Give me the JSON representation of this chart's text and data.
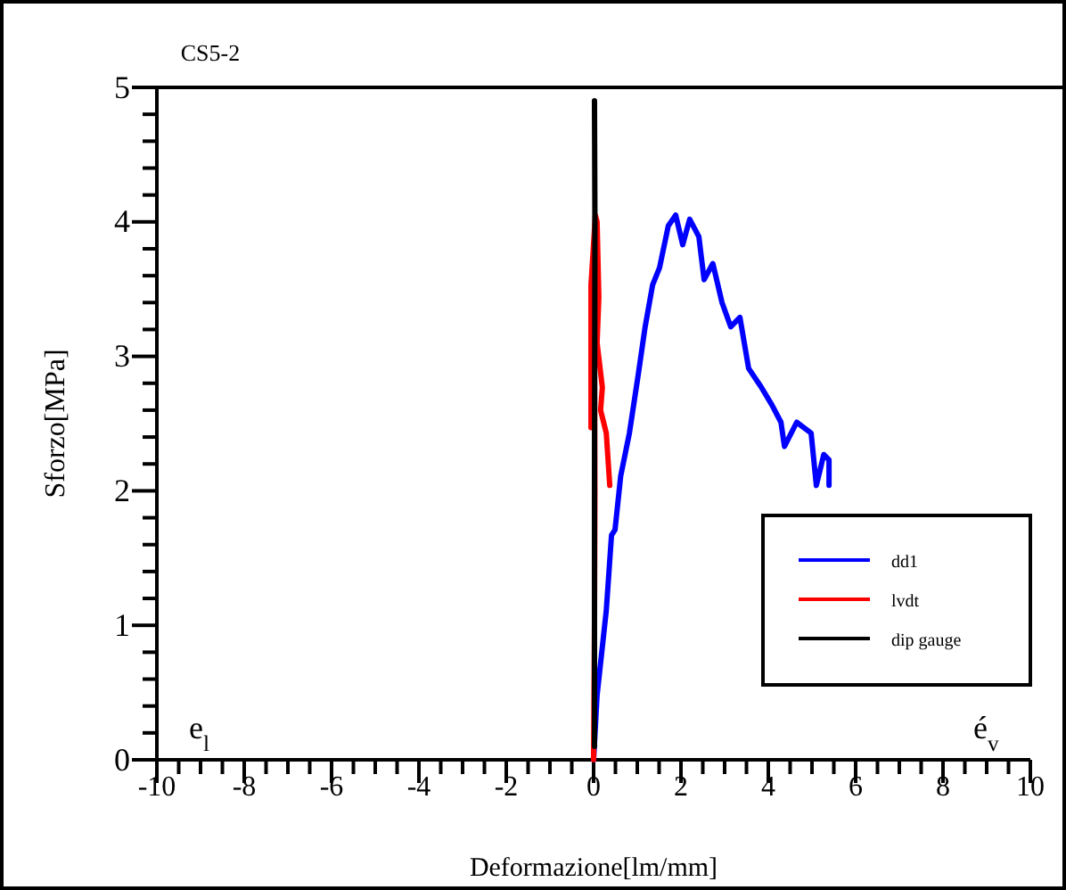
{
  "chart_data": {
    "type": "line",
    "title": "CS5-2",
    "xlabel": "Deformazione[lm/mm]",
    "ylabel": "Sforzo[MPa]",
    "annotations": [
      "e$_{l}$",
      "é$_{v}$"
    ],
    "series": [
      {
        "name": "dd1",
        "color": "#0000ff",
        "x": [
          0,
          0.08,
          0.29,
          0.41,
          0.49,
          0.62,
          0.82,
          1.02,
          1.18,
          1.35,
          1.51,
          1.71,
          1.88,
          2.04,
          2.2,
          2.41,
          2.53,
          2.73,
          2.94,
          3.14,
          3.35,
          3.55,
          3.84,
          4.08,
          4.29,
          4.37,
          4.65,
          4.98,
          5.1,
          5.27,
          5.39,
          5.39
        ],
        "values": [
          0,
          0.48,
          1.11,
          1.67,
          1.71,
          2.11,
          2.43,
          2.86,
          3.22,
          3.53,
          3.66,
          3.97,
          4.05,
          3.83,
          4.02,
          3.89,
          3.57,
          3.69,
          3.4,
          3.22,
          3.29,
          2.91,
          2.77,
          2.64,
          2.51,
          2.33,
          2.51,
          2.43,
          2.04,
          2.27,
          2.23,
          2.04
        ]
      },
      {
        "name": "lvdt",
        "color": "#ff0000",
        "x": [
          0,
          0.02,
          0.03,
          0.02,
          -0.06,
          -0.06,
          0.04,
          0.08,
          0.12,
          0.08,
          0.2,
          0.16,
          0.29,
          0.37
        ],
        "values": [
          0,
          1,
          2,
          3,
          2.47,
          3.53,
          4.05,
          4,
          3.44,
          3.1,
          2.77,
          2.6,
          2.43,
          2.04
        ]
      },
      {
        "name": "dip gauge",
        "color": "#000000",
        "x": [
          0.02,
          0.02,
          0.03,
          0.02
        ],
        "values": [
          0.1,
          2,
          4,
          4.9
        ]
      }
    ],
    "xlim": [
      -10,
      10
    ],
    "xticks": [
      -10,
      {
        "value": -9.5,
        "label": null
      },
      {
        "value": -9,
        "label": null
      },
      {
        "value": -8.5,
        "label": null
      },
      -8,
      {
        "value": -7.5,
        "label": null
      },
      {
        "value": -7,
        "label": null
      },
      {
        "value": -6.5,
        "label": null
      },
      -6,
      {
        "value": -5.5,
        "label": null
      },
      {
        "value": -5,
        "label": null
      },
      {
        "value": -4.5,
        "label": null
      },
      -4,
      {
        "value": -3.5,
        "label": null
      },
      {
        "value": -3,
        "label": null
      },
      {
        "value": -2.5,
        "label": null
      },
      -2,
      {
        "value": -1.5,
        "label": null
      },
      {
        "value": -1,
        "label": null
      },
      {
        "value": -0.5,
        "label": null
      },
      0,
      {
        "value": 0.5,
        "label": null
      },
      {
        "value": 1,
        "label": null
      },
      {
        "value": 1.5,
        "label": null
      },
      2,
      {
        "value": 2.5,
        "label": null
      },
      {
        "value": 3,
        "label": null
      },
      {
        "value": 3.5,
        "label": null
      },
      4,
      {
        "value": 4.5,
        "label": null
      },
      {
        "value": 5,
        "label": null
      },
      {
        "value": 5.5,
        "label": null
      },
      6,
      {
        "value": 6.5,
        "label": null
      },
      {
        "value": 7,
        "label": null
      },
      {
        "value": 7.5,
        "label": null
      },
      8,
      {
        "value": 8.5,
        "label": null
      },
      {
        "value": 9,
        "label": null
      },
      {
        "value": 9.5,
        "label": null
      },
      10
    ],
    "ylim": [
      0,
      5
    ],
    "yticks": [
      0,
      {
        "value": 0.2,
        "label": null
      },
      {
        "value": 0.4,
        "label": null
      },
      {
        "value": 0.6,
        "label": null
      },
      {
        "value": 0.8,
        "label": null
      },
      1,
      {
        "value": 1.2,
        "label": null
      },
      {
        "value": 1.4,
        "label": null
      },
      {
        "value": 1.6,
        "label": null
      },
      {
        "value": 1.8,
        "label": null
      },
      2,
      {
        "value": 2.2,
        "label": null
      },
      {
        "value": 2.4,
        "label": null
      },
      {
        "value": 2.6,
        "label": null
      },
      {
        "value": 2.8,
        "label": null
      },
      3,
      {
        "value": 3.2,
        "label": null
      },
      {
        "value": 3.4,
        "label": null
      },
      {
        "value": 3.6,
        "label": null
      },
      {
        "value": 3.8,
        "label": null
      },
      4,
      {
        "value": 4.2,
        "label": null
      },
      {
        "value": 4.4,
        "label": null
      },
      {
        "value": 4.6,
        "label": null
      },
      {
        "value": 4.8,
        "label": null
      },
      5
    ],
    "grid": false,
    "legend": "bottom right",
    "marker": "none",
    "line_style": "solid"
  }
}
